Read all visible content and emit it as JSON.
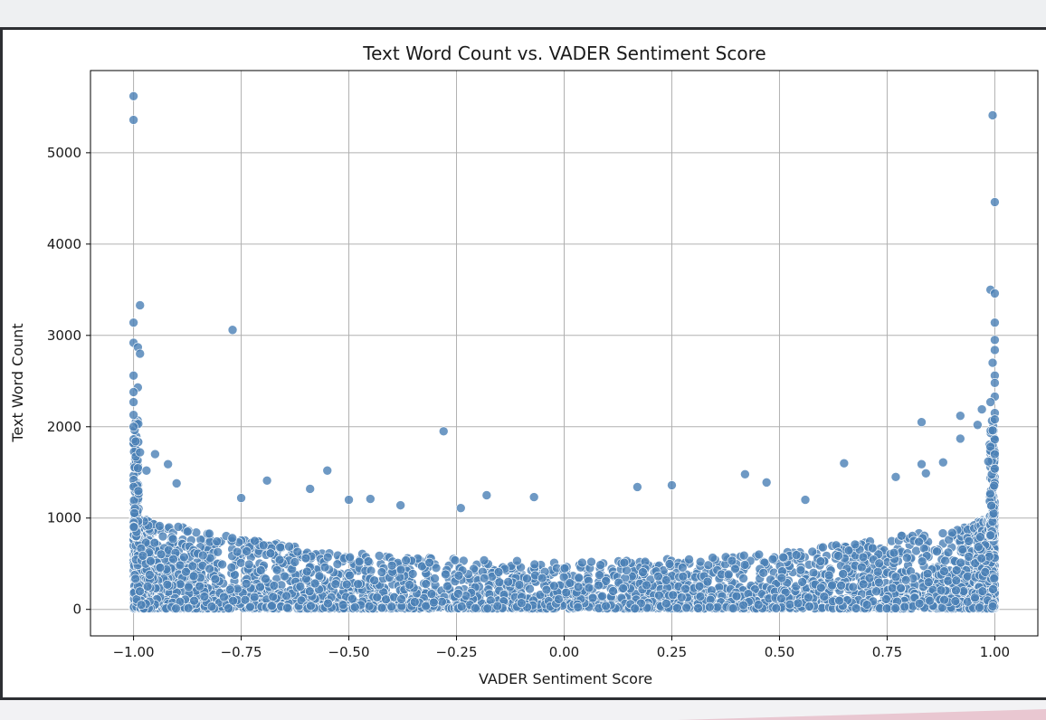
{
  "chart_data": {
    "type": "scatter",
    "title": "Text Word Count vs. VADER Sentiment Score",
    "xlabel": "VADER Sentiment Score",
    "ylabel": "Text Word Count",
    "xlim": [
      -1.1,
      1.1
    ],
    "ylim": [
      -290,
      5900
    ],
    "xticks": [
      -1.0,
      -0.75,
      -0.5,
      -0.25,
      0.0,
      0.25,
      0.5,
      0.75,
      1.0
    ],
    "xtick_labels": [
      "−1.00",
      "−0.75",
      "−0.50",
      "−0.25",
      "0.00",
      "0.25",
      "0.50",
      "0.75",
      "1.00"
    ],
    "yticks": [
      0,
      1000,
      2000,
      3000,
      4000,
      5000
    ],
    "ytick_labels": [
      "0",
      "1000",
      "2000",
      "3000",
      "4000",
      "5000"
    ],
    "grid": true,
    "colors": {
      "marker": "#4a7fb5",
      "marker_edge": "#ffffff",
      "grid": "#b0b0b0"
    },
    "series": [
      {
        "outliers": [
          {
            "x": -1.0,
            "y": 5620
          },
          {
            "x": -1.0,
            "y": 5360
          },
          {
            "x": -0.985,
            "y": 3330
          },
          {
            "x": -1.0,
            "y": 3140
          },
          {
            "x": -1.0,
            "y": 2920
          },
          {
            "x": -0.99,
            "y": 2870
          },
          {
            "x": -0.985,
            "y": 2800
          },
          {
            "x": -1.0,
            "y": 2560
          },
          {
            "x": -0.99,
            "y": 2430
          },
          {
            "x": -1.0,
            "y": 2380
          },
          {
            "x": -1.0,
            "y": 2270
          },
          {
            "x": -1.0,
            "y": 2130
          },
          {
            "x": -1.0,
            "y": 2000
          },
          {
            "x": -0.995,
            "y": 1840
          },
          {
            "x": -0.985,
            "y": 1720
          },
          {
            "x": -0.77,
            "y": 3060
          },
          {
            "x": -0.28,
            "y": 1950
          },
          {
            "x": -0.95,
            "y": 1700
          },
          {
            "x": -0.92,
            "y": 1590
          },
          {
            "x": -0.97,
            "y": 1520
          },
          {
            "x": -0.9,
            "y": 1380
          },
          {
            "x": -0.69,
            "y": 1410
          },
          {
            "x": -0.59,
            "y": 1320
          },
          {
            "x": -0.55,
            "y": 1520
          },
          {
            "x": -0.5,
            "y": 1200
          },
          {
            "x": -0.45,
            "y": 1210
          },
          {
            "x": -0.38,
            "y": 1140
          },
          {
            "x": -0.75,
            "y": 1220
          },
          {
            "x": -0.18,
            "y": 1250
          },
          {
            "x": -0.07,
            "y": 1230
          },
          {
            "x": -0.24,
            "y": 1110
          },
          {
            "x": 0.17,
            "y": 1340
          },
          {
            "x": 0.25,
            "y": 1360
          },
          {
            "x": 0.42,
            "y": 1480
          },
          {
            "x": 0.47,
            "y": 1390
          },
          {
            "x": 0.56,
            "y": 1200
          },
          {
            "x": 0.65,
            "y": 1600
          },
          {
            "x": 0.77,
            "y": 1450
          },
          {
            "x": 0.83,
            "y": 2050
          },
          {
            "x": 0.83,
            "y": 1590
          },
          {
            "x": 0.84,
            "y": 1490
          },
          {
            "x": 0.88,
            "y": 1610
          },
          {
            "x": 0.92,
            "y": 2120
          },
          {
            "x": 0.92,
            "y": 1870
          },
          {
            "x": 0.96,
            "y": 2020
          },
          {
            "x": 0.97,
            "y": 2190
          },
          {
            "x": 0.995,
            "y": 5410
          },
          {
            "x": 1.0,
            "y": 4460
          },
          {
            "x": 0.99,
            "y": 3500
          },
          {
            "x": 1.0,
            "y": 3460
          },
          {
            "x": 1.0,
            "y": 3140
          },
          {
            "x": 1.0,
            "y": 2950
          },
          {
            "x": 1.0,
            "y": 2840
          },
          {
            "x": 0.995,
            "y": 2700
          },
          {
            "x": 1.0,
            "y": 2560
          },
          {
            "x": 1.0,
            "y": 2480
          },
          {
            "x": 1.0,
            "y": 2330
          },
          {
            "x": 0.99,
            "y": 2270
          },
          {
            "x": 1.0,
            "y": 2150
          },
          {
            "x": 1.0,
            "y": 2080
          },
          {
            "x": 0.995,
            "y": 1960
          },
          {
            "x": 1.0,
            "y": 1860
          },
          {
            "x": 0.99,
            "y": 1780
          },
          {
            "x": 1.0,
            "y": 1700
          },
          {
            "x": 0.985,
            "y": 1620
          },
          {
            "x": 1.0,
            "y": 1540
          }
        ],
        "bulk_summary": "dense band of points from x=-1.00 to 1.00, y=0 to ~1000, densest near both extremes (|x|≈1) with lower upper envelope (~600) near x=0"
      }
    ]
  }
}
